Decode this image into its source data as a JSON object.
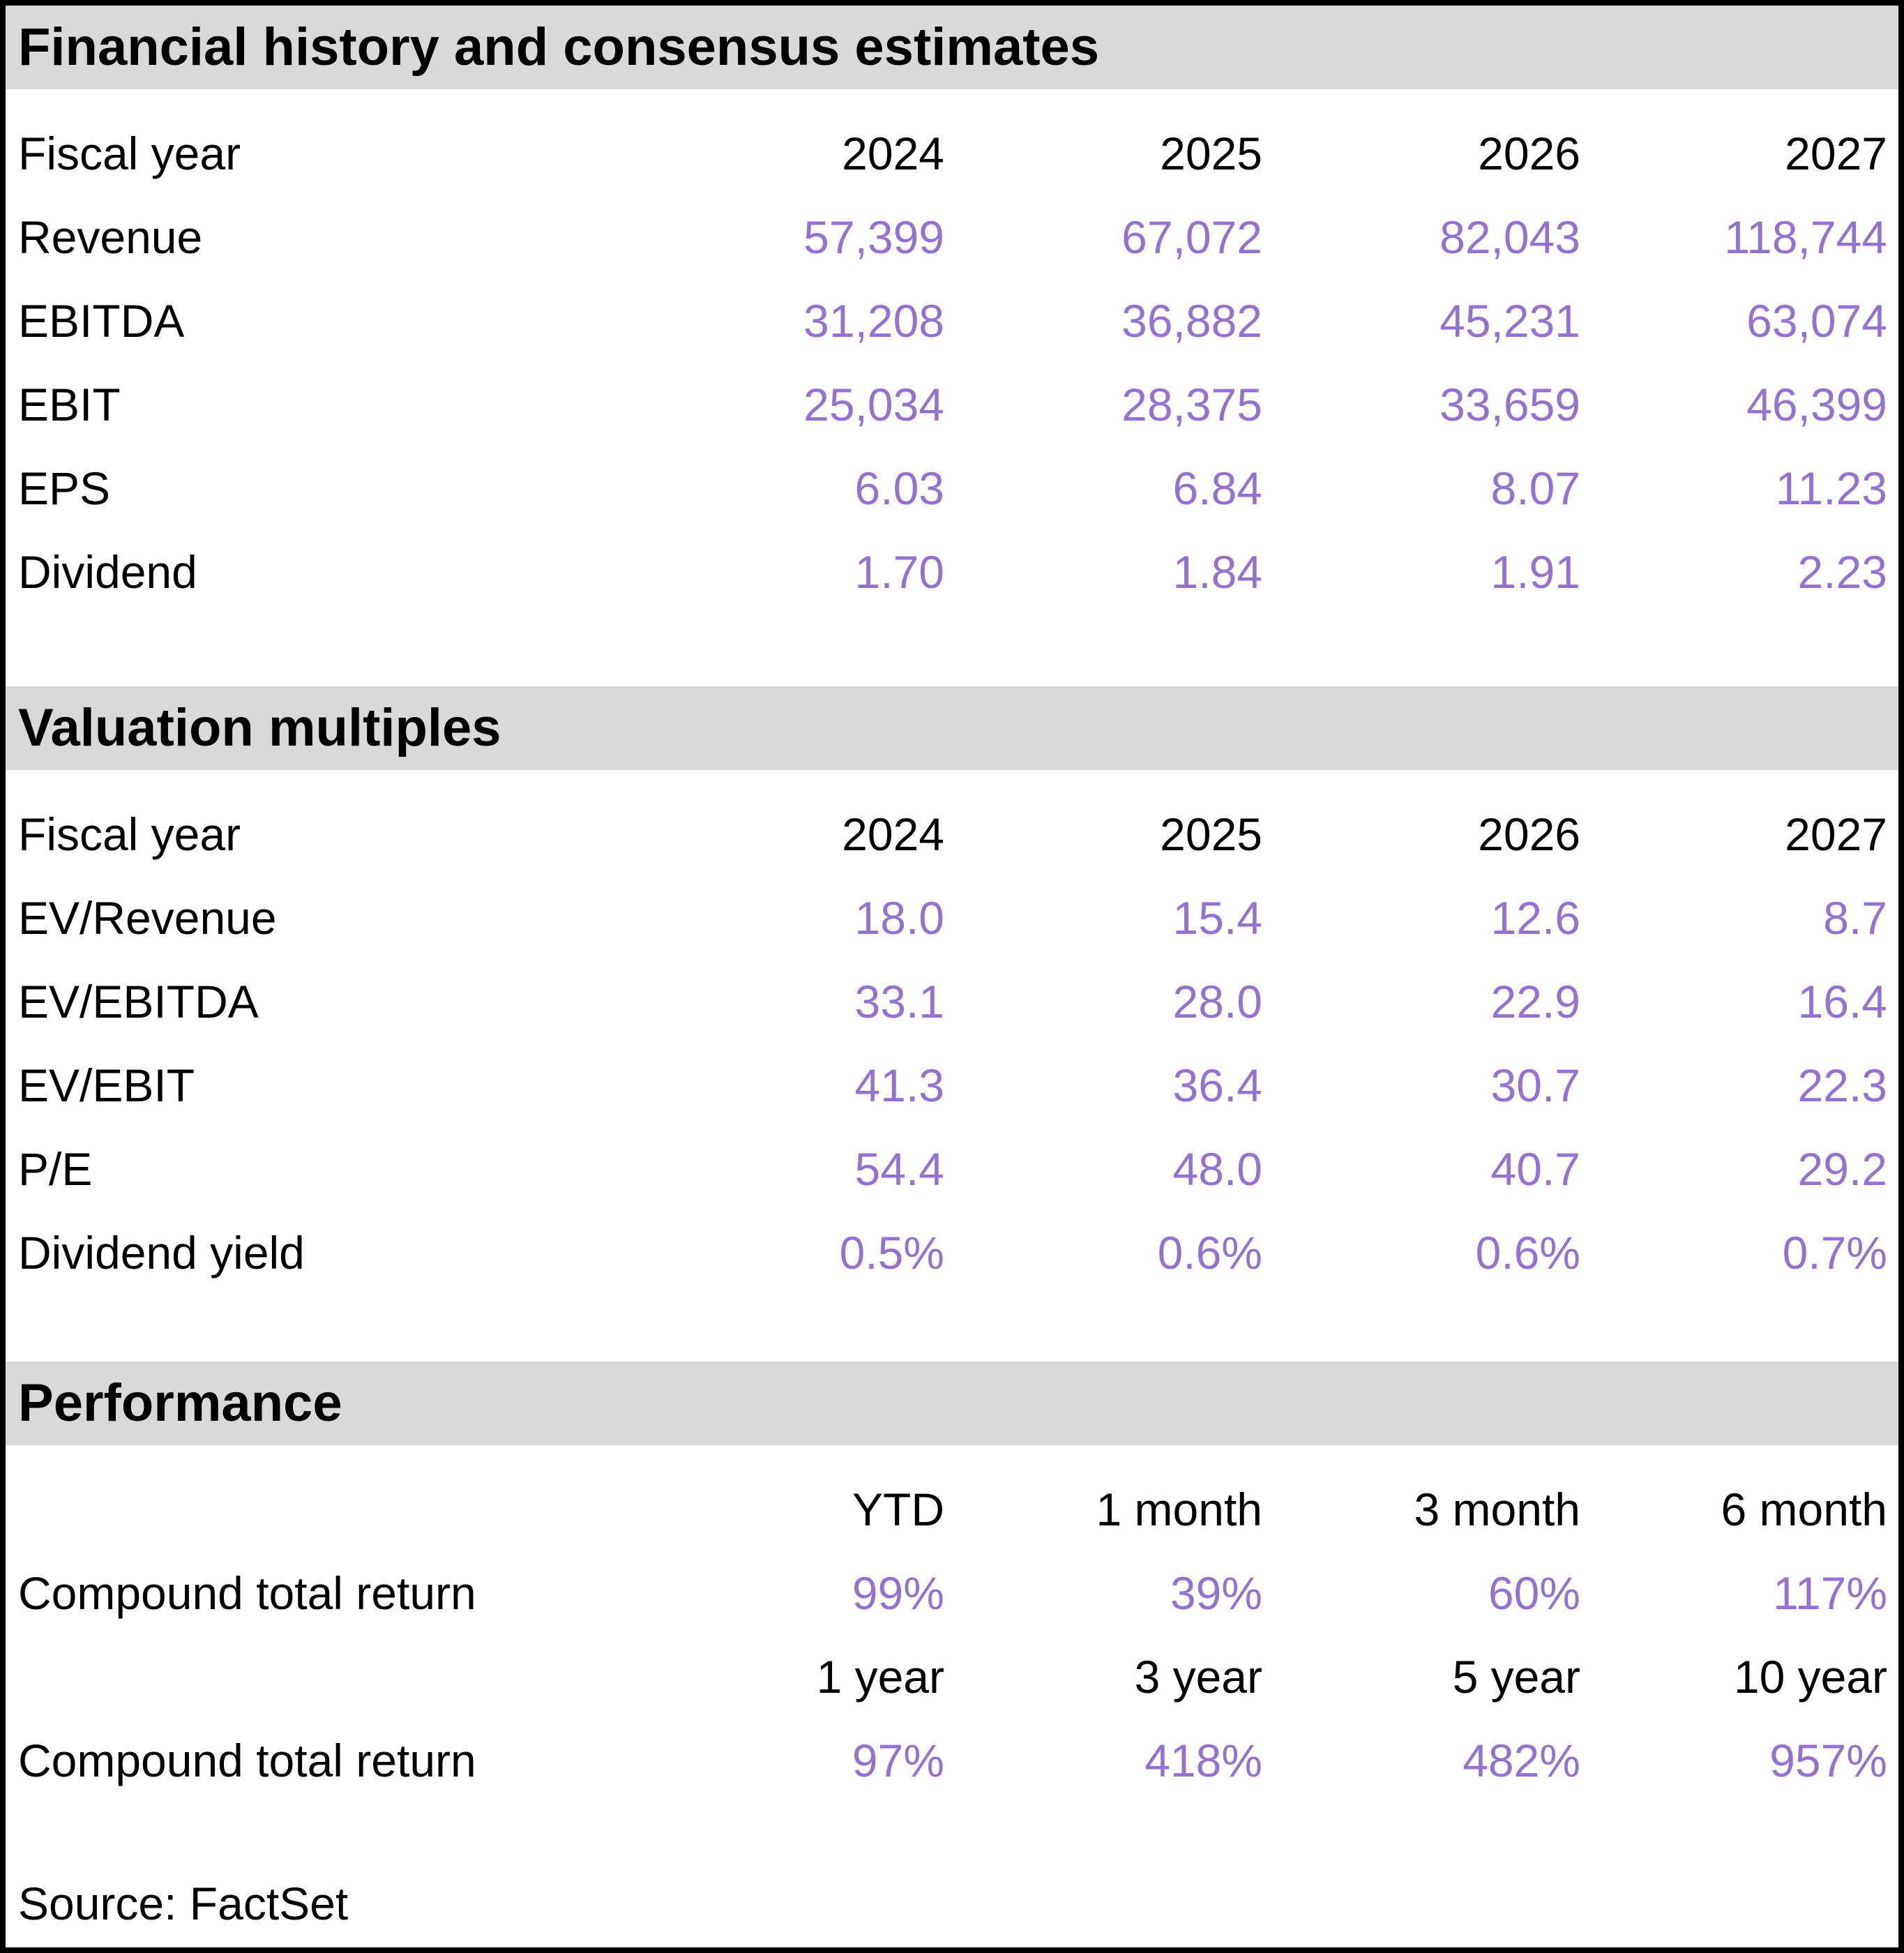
{
  "colors": {
    "accent_purple": "#9473d0",
    "band_gray": "#d9d9d9",
    "border_black": "#000000",
    "text_black": "#000000"
  },
  "sections": [
    {
      "title": "Financial history and consensus estimates",
      "header_label": "Fiscal year",
      "columns": [
        "2024",
        "2025",
        "2026",
        "2027"
      ],
      "rows": [
        {
          "label": "Revenue",
          "values": [
            "57,399",
            "67,072",
            "82,043",
            "118,744"
          ]
        },
        {
          "label": "EBITDA",
          "values": [
            "31,208",
            "36,882",
            "45,231",
            "63,074"
          ]
        },
        {
          "label": "EBIT",
          "values": [
            "25,034",
            "28,375",
            "33,659",
            "46,399"
          ]
        },
        {
          "label": "EPS",
          "values": [
            "6.03",
            "6.84",
            "8.07",
            "11.23"
          ]
        },
        {
          "label": "Dividend",
          "values": [
            "1.70",
            "1.84",
            "1.91",
            "2.23"
          ]
        }
      ]
    },
    {
      "title": "Valuation multiples",
      "header_label": "Fiscal year",
      "columns": [
        "2024",
        "2025",
        "2026",
        "2027"
      ],
      "rows": [
        {
          "label": "EV/Revenue",
          "values": [
            "18.0",
            "15.4",
            "12.6",
            "8.7"
          ]
        },
        {
          "label": "EV/EBITDA",
          "values": [
            "33.1",
            "28.0",
            "22.9",
            "16.4"
          ]
        },
        {
          "label": "EV/EBIT",
          "values": [
            "41.3",
            "36.4",
            "30.7",
            "22.3"
          ]
        },
        {
          "label": "P/E",
          "values": [
            "54.4",
            "48.0",
            "40.7",
            "29.2"
          ]
        },
        {
          "label": "Dividend yield",
          "values": [
            "0.5%",
            "0.6%",
            "0.6%",
            "0.7%"
          ]
        }
      ]
    },
    {
      "title": "Performance",
      "groups": [
        {
          "columns": [
            "YTD",
            "1 month",
            "3 month",
            "6 month"
          ],
          "rows": [
            {
              "label": "Compound total return",
              "values": [
                "99%",
                "39%",
                "60%",
                "117%"
              ]
            }
          ]
        },
        {
          "columns": [
            "1 year",
            "3 year",
            "5 year",
            "10 year"
          ],
          "rows": [
            {
              "label": "Compound total return",
              "values": [
                "97%",
                "418%",
                "482%",
                "957%"
              ]
            }
          ]
        }
      ]
    }
  ],
  "source": "Source: FactSet"
}
